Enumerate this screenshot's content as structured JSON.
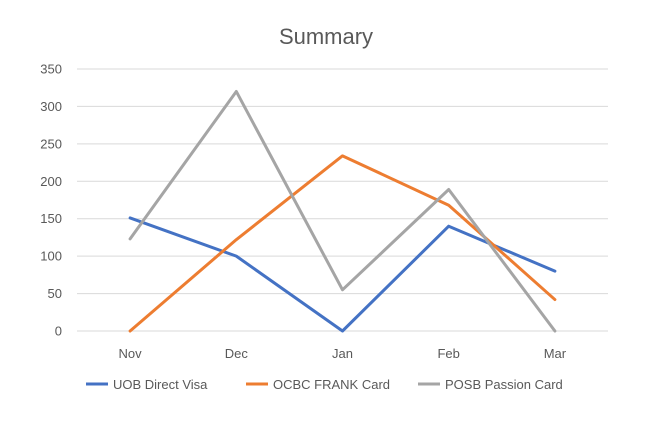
{
  "chart_data": {
    "type": "line",
    "title": "Summary",
    "xlabel": "",
    "ylabel": "",
    "categories": [
      "Nov",
      "Dec",
      "Jan",
      "Feb",
      "Mar"
    ],
    "ylim": [
      0,
      350
    ],
    "yticks": [
      "0",
      "50",
      "100",
      "150",
      "200",
      "250",
      "300",
      "350"
    ],
    "grid": true,
    "legend_position": "bottom",
    "series": [
      {
        "name": "UOB Direct Visa",
        "color": "#4472c4",
        "values": [
          151,
          100,
          0,
          140,
          80
        ]
      },
      {
        "name": "OCBC FRANK Card",
        "color": "#ed7d31",
        "values": [
          0,
          122,
          234,
          168,
          42
        ]
      },
      {
        "name": "POSB Passion Card",
        "color": "#a5a5a5",
        "values": [
          123,
          320,
          55,
          189,
          0
        ]
      }
    ]
  }
}
